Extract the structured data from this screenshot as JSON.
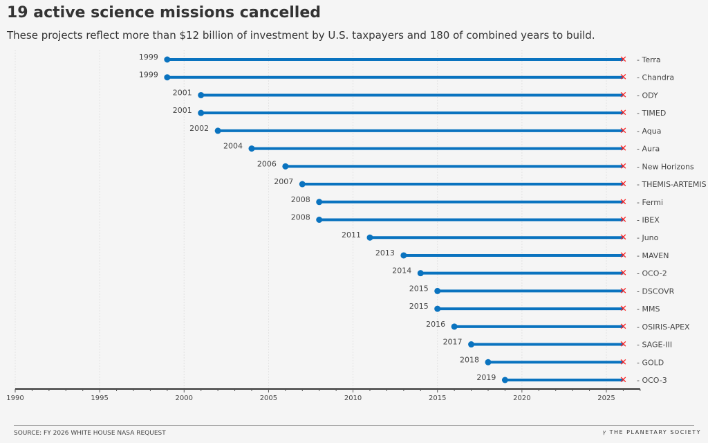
{
  "chart_data": {
    "type": "dumbbell",
    "title": "19 active science missions cancelled",
    "subtitle": "These projects reflect more than $12 billion of investment by U.S. taxpayers and 180 of combined years to build.",
    "xlim": [
      1990,
      2027
    ],
    "xticks": [
      1990,
      1995,
      2000,
      2005,
      2010,
      2015,
      2020,
      2025
    ],
    "end_year": 2026,
    "grid": true,
    "colors": {
      "line": "#0a73bf",
      "start": "#0a73bf",
      "end": "#ff1a1a"
    },
    "missions": [
      {
        "name": "Terra",
        "start": 1999
      },
      {
        "name": "Chandra",
        "start": 1999
      },
      {
        "name": "ODY",
        "start": 2001
      },
      {
        "name": "TIMED",
        "start": 2001
      },
      {
        "name": "Aqua",
        "start": 2002
      },
      {
        "name": "Aura",
        "start": 2004
      },
      {
        "name": "New Horizons",
        "start": 2006
      },
      {
        "name": "THEMIS-ARTEMIS",
        "start": 2007
      },
      {
        "name": "Fermi",
        "start": 2008
      },
      {
        "name": "IBEX",
        "start": 2008
      },
      {
        "name": "Juno",
        "start": 2011
      },
      {
        "name": "MAVEN",
        "start": 2013
      },
      {
        "name": "OCO-2",
        "start": 2014
      },
      {
        "name": "DSCOVR",
        "start": 2015
      },
      {
        "name": "MMS",
        "start": 2015
      },
      {
        "name": "OSIRIS-APEX",
        "start": 2016
      },
      {
        "name": "SAGE-III",
        "start": 2017
      },
      {
        "name": "GOLD",
        "start": 2018
      },
      {
        "name": "OCO-3",
        "start": 2019
      }
    ]
  },
  "footer": {
    "source": "SOURCE: FY 2026 WHITE HOUSE NASA REQUEST",
    "logo": "THE PLANETARY SOCIETY"
  }
}
